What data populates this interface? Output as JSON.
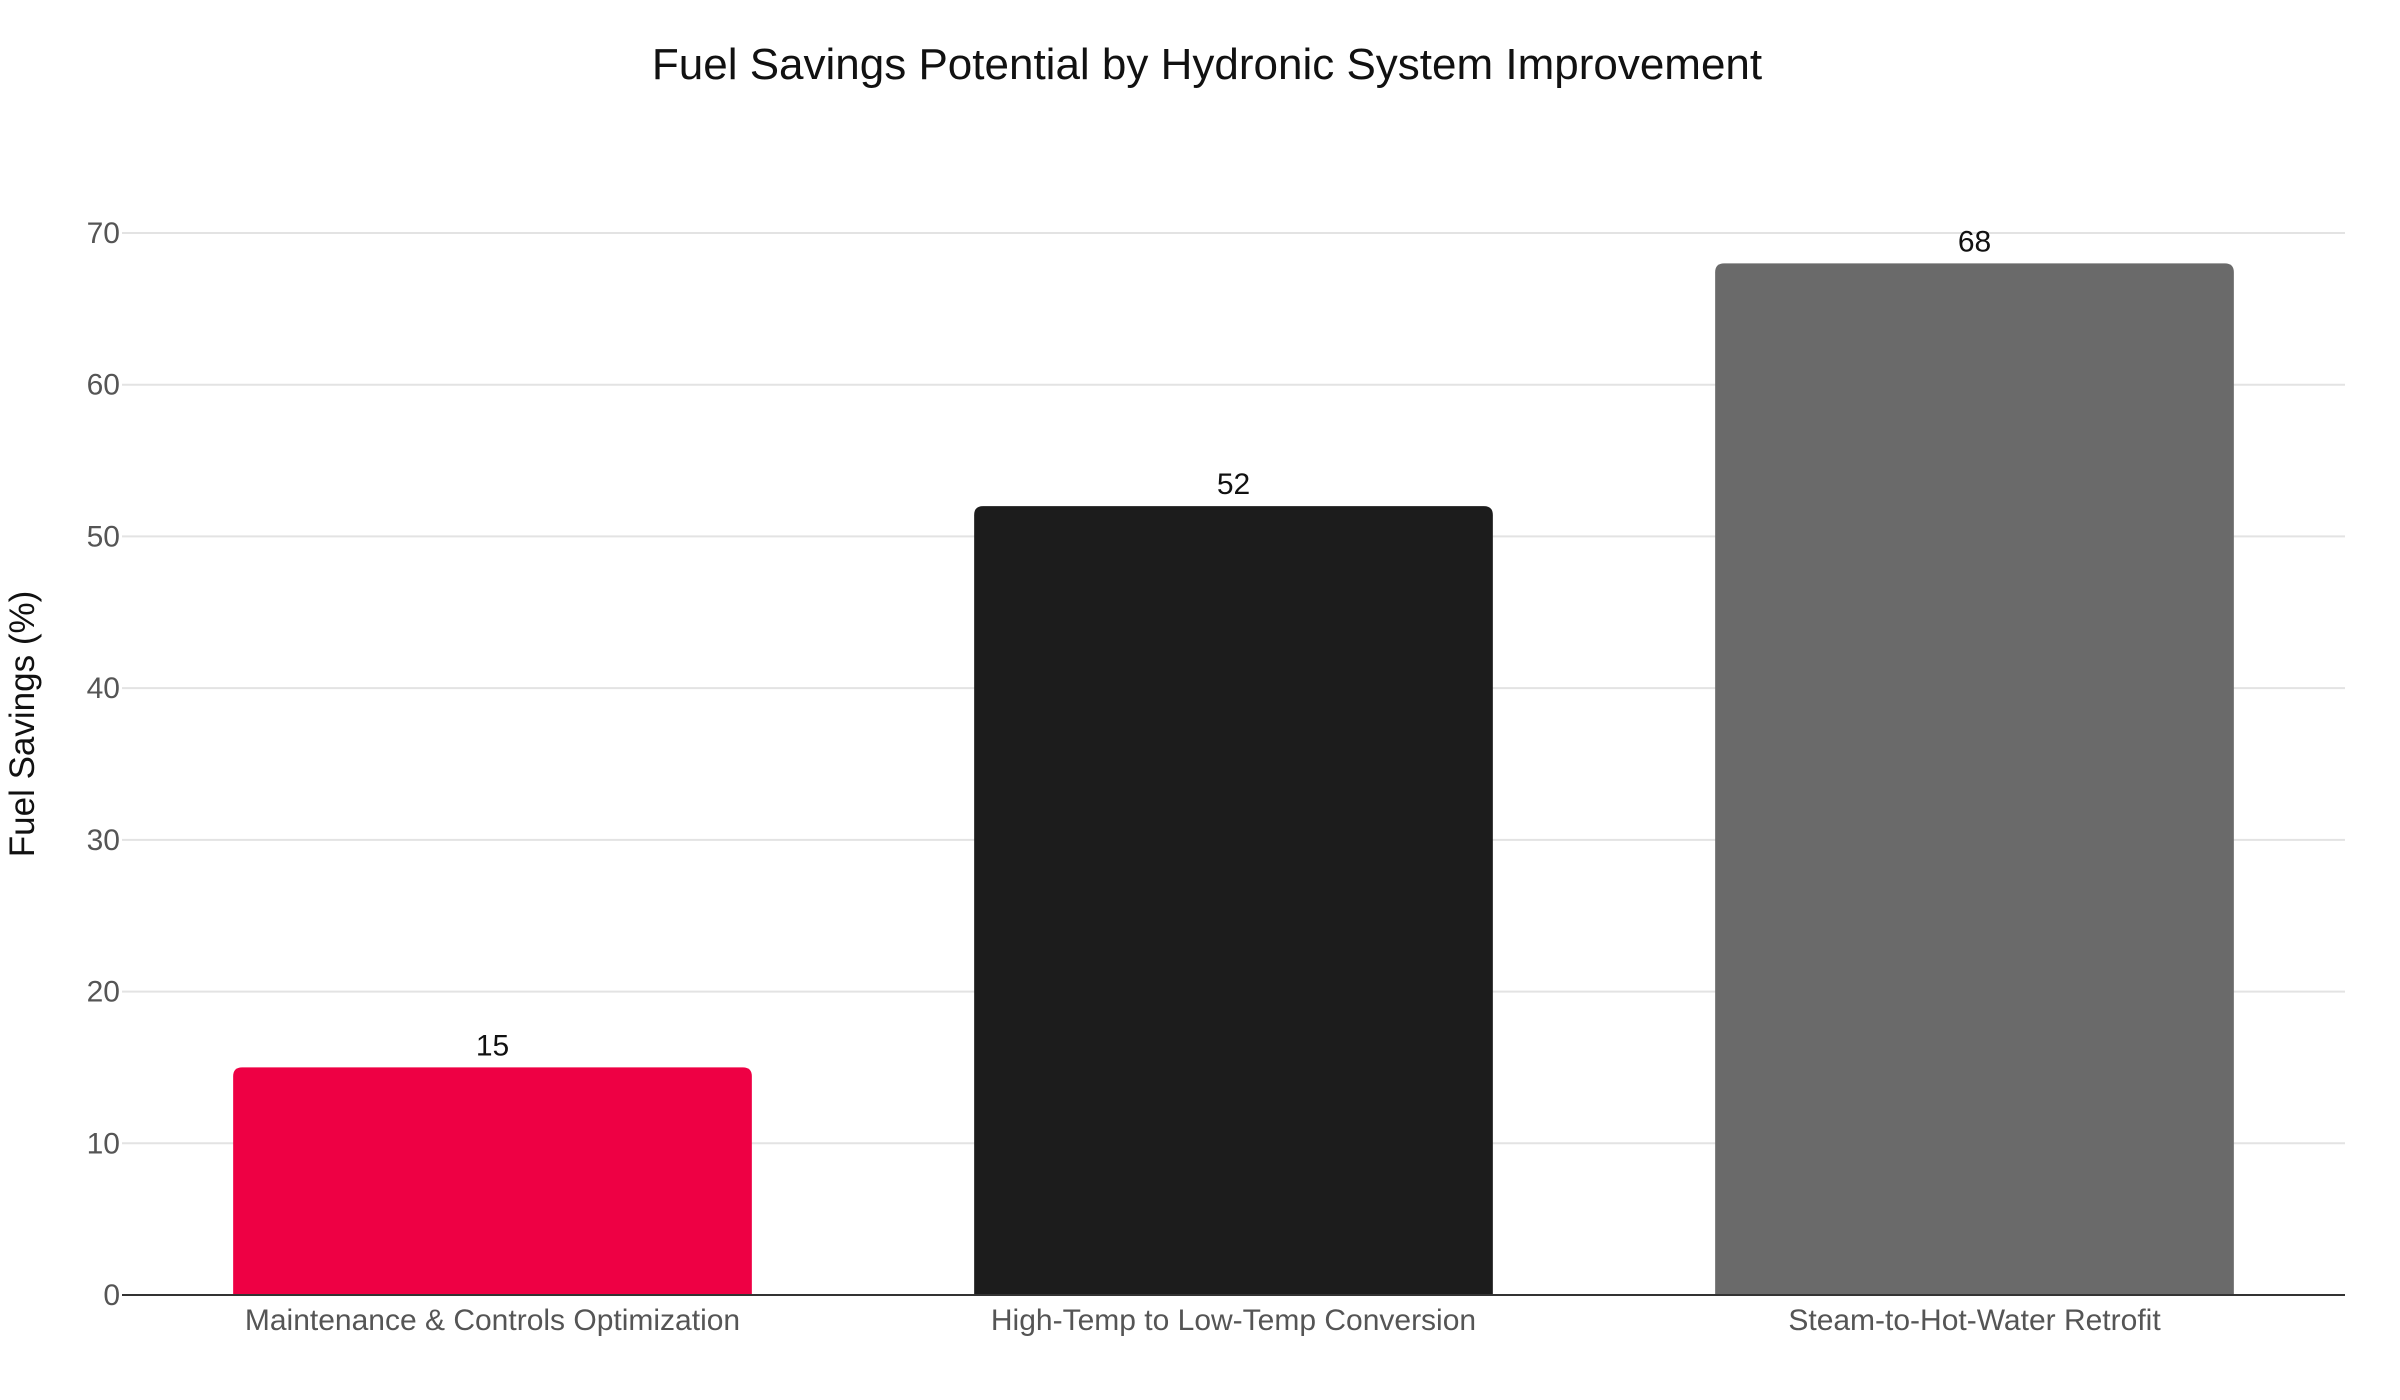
{
  "chart_data": {
    "type": "bar",
    "title": "Fuel Savings Potential by Hydronic System Improvement",
    "xlabel": "",
    "ylabel": "Fuel Savings (%)",
    "categories": [
      "Maintenance & Controls Optimization",
      "High-Temp to Low-Temp Conversion",
      "Steam-to-Hot-Water Retrofit"
    ],
    "values": [
      15,
      52,
      68
    ],
    "data_labels": [
      "15",
      "52",
      "68"
    ],
    "colors": [
      "#ee0044",
      "#1c1c1c",
      "#6a6a6a"
    ],
    "ylim": [
      0,
      70
    ],
    "yticks": [
      0,
      10,
      20,
      30,
      40,
      50,
      60,
      70
    ],
    "grid": true,
    "legend": "none"
  }
}
